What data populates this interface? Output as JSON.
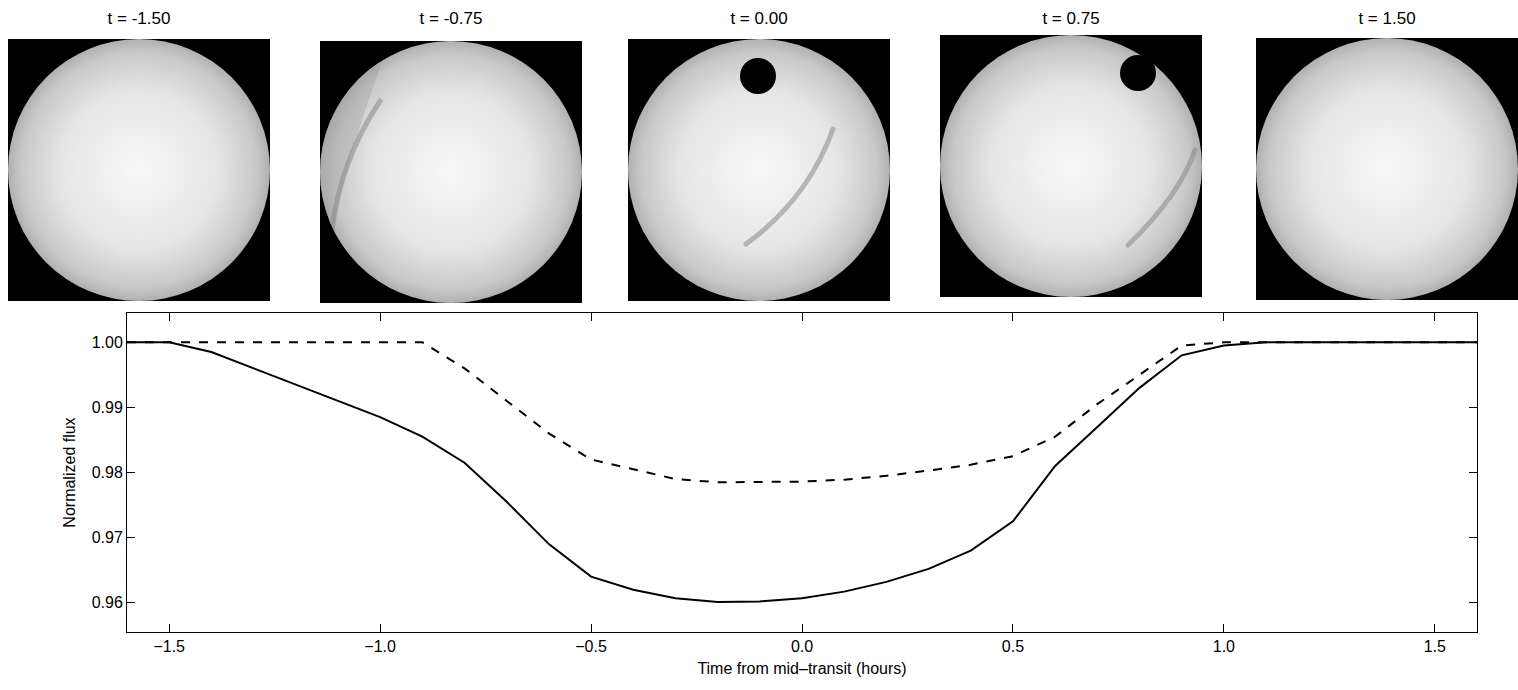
{
  "panels": [
    {
      "title": "t = -1.50"
    },
    {
      "title": "t = -0.75"
    },
    {
      "title": "t = 0.00"
    },
    {
      "title": "t = 0.75"
    },
    {
      "title": "t = 1.50"
    }
  ],
  "chart_data": {
    "type": "line",
    "x_label": "Time from mid–transit (hours)",
    "y_label": "Normalized flux",
    "x": [
      -1.6,
      -1.5,
      -1.4,
      -1.3,
      -1.2,
      -1.1,
      -1.0,
      -0.9,
      -0.8,
      -0.7,
      -0.6,
      -0.5,
      -0.4,
      -0.3,
      -0.2,
      -0.1,
      0.0,
      0.1,
      0.2,
      0.3,
      0.4,
      0.5,
      0.6,
      0.7,
      0.8,
      0.9,
      1.0,
      1.1,
      1.2,
      1.3,
      1.4,
      1.5,
      1.6
    ],
    "series": [
      {
        "color": "#000000",
        "line_style": "solid",
        "values": [
          1.0,
          1.0,
          0.9985,
          0.996,
          0.9935,
          0.991,
          0.9885,
          0.9855,
          0.9815,
          0.9755,
          0.969,
          0.964,
          0.962,
          0.9607,
          0.9601,
          0.9602,
          0.9607,
          0.9617,
          0.9632,
          0.9652,
          0.968,
          0.9725,
          0.981,
          0.987,
          0.993,
          0.998,
          0.9995,
          1.0,
          1.0,
          1.0,
          1.0,
          1.0,
          1.0
        ]
      },
      {
        "color": "#000000",
        "line_style": "dash",
        "values": [
          1.0,
          1.0,
          1.0,
          1.0,
          1.0,
          1.0,
          1.0,
          1.0,
          0.996,
          0.991,
          0.986,
          0.982,
          0.9805,
          0.979,
          0.9785,
          0.9785,
          0.9786,
          0.9789,
          0.9795,
          0.9803,
          0.9812,
          0.9825,
          0.9855,
          0.9905,
          0.995,
          0.9995,
          1.0,
          1.0,
          1.0,
          1.0,
          1.0,
          1.0,
          1.0
        ]
      }
    ],
    "xlim": [
      -1.6,
      1.6
    ],
    "xticks": [
      {
        "value": -1.5,
        "label": "−1.5"
      },
      {
        "value": -1.0,
        "label": "−1.0"
      },
      {
        "value": -0.5,
        "label": "−0.5"
      },
      {
        "value": 0.0,
        "label": "0.0"
      },
      {
        "value": 0.5,
        "label": "0.5"
      },
      {
        "value": 1.0,
        "label": "1.0"
      },
      {
        "value": 1.5,
        "label": "1.5"
      }
    ],
    "ylim": [
      0.9555,
      1.0045
    ],
    "yticks": [
      0.96,
      0.97,
      0.98,
      0.99,
      {
        "value": 1.0,
        "label": "1.00"
      }
    ],
    "grid": false
  }
}
